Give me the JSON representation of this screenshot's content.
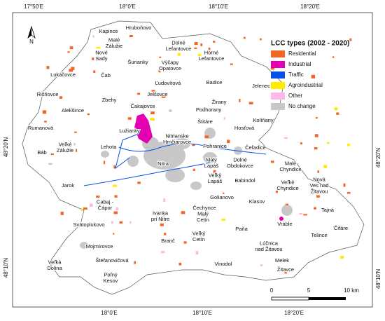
{
  "graticule": {
    "top": [
      "17°50'E",
      "18°0'E",
      "18°10'E",
      "18°20'E"
    ],
    "bottom": [
      "18°0'E",
      "18°10'E",
      "18°20'E"
    ],
    "left": [
      "48°20'N",
      "48°10'N"
    ],
    "right": [
      "48°20'N",
      "48°10'N"
    ]
  },
  "north": "N",
  "legend": {
    "title": "LCC types (2002 - 2020)",
    "items": [
      {
        "label": "Residential",
        "color": "#f26422"
      },
      {
        "label": "Industrial",
        "color": "#e400b0"
      },
      {
        "label": "Traffic",
        "color": "#0a4fe8"
      },
      {
        "label": "Agroindustrial",
        "color": "#ffea00"
      },
      {
        "label": "Other",
        "color": "#ffb8e8"
      },
      {
        "label": "No change",
        "color": "#c8c8c8"
      }
    ]
  },
  "scale": {
    "labels": [
      "0",
      "5",
      "10 km"
    ]
  },
  "places": [
    {
      "lines": [
        "Kapince"
      ]
    },
    {
      "lines": [
        "Hruboňovo"
      ]
    },
    {
      "lines": [
        "Malé",
        "Zálužie"
      ]
    },
    {
      "lines": [
        "Nové",
        "Sady"
      ]
    },
    {
      "lines": [
        "Dolné",
        "Lefantovce"
      ]
    },
    {
      "lines": [
        "Horné",
        "Lefantovce"
      ]
    },
    {
      "lines": [
        "Šurianky"
      ]
    },
    {
      "lines": [
        "Výčapy",
        "Opatovce"
      ]
    },
    {
      "lines": [
        "Čab"
      ]
    },
    {
      "lines": [
        "Lukáčovce"
      ]
    },
    {
      "lines": [
        "Ľudovítová"
      ]
    },
    {
      "lines": [
        "Badice"
      ]
    },
    {
      "lines": [
        "Jelenec"
      ]
    },
    {
      "lines": [
        "Jelšovce"
      ]
    },
    {
      "lines": [
        "Rišňovce"
      ]
    },
    {
      "lines": [
        "Zbehy"
      ]
    },
    {
      "lines": [
        "Čakajovce"
      ]
    },
    {
      "lines": [
        "Žirany"
      ]
    },
    {
      "lines": [
        "Alekšince"
      ]
    },
    {
      "lines": [
        "Podhorany"
      ]
    },
    {
      "lines": [
        "Štitáre"
      ]
    },
    {
      "lines": [
        "Rumanová"
      ]
    },
    {
      "lines": [
        "Lužianky"
      ]
    },
    {
      "lines": [
        "Kolíňany"
      ]
    },
    {
      "lines": [
        "Hosťová"
      ]
    },
    {
      "lines": [
        "Veľké",
        "Zálužie"
      ]
    },
    {
      "lines": [
        "Lehota"
      ]
    },
    {
      "lines": [
        "Nitrianske",
        "Hrnčiarovce"
      ]
    },
    {
      "lines": [
        "Pohranice"
      ]
    },
    {
      "lines": [
        "Čeľadice"
      ]
    },
    {
      "lines": [
        "Báb"
      ]
    },
    {
      "lines": [
        "Nitra"
      ]
    },
    {
      "lines": [
        "Malý",
        "Lapáš"
      ]
    },
    {
      "lines": [
        "Dolné",
        "Obdokovce"
      ]
    },
    {
      "lines": [
        "Malé",
        "Chyndice"
      ]
    },
    {
      "lines": [
        "Jarok"
      ]
    },
    {
      "lines": [
        "Veľký",
        "Lapáš"
      ]
    },
    {
      "lines": [
        "Babindol"
      ]
    },
    {
      "lines": [
        "Veľké",
        "Chyndice"
      ]
    },
    {
      "lines": [
        "Nová",
        "Ves nad",
        "Žitavou"
      ]
    },
    {
      "lines": [
        "Golianovo"
      ]
    },
    {
      "lines": [
        "Klasov"
      ]
    },
    {
      "lines": [
        "Cabaj -",
        "Čápor"
      ]
    },
    {
      "lines": [
        "Čechynce"
      ]
    },
    {
      "lines": [
        "Tajná"
      ]
    },
    {
      "lines": [
        "Čifáre"
      ]
    },
    {
      "lines": [
        "Svätoplukovo"
      ]
    },
    {
      "lines": [
        "Ivanka",
        "pri Nitre"
      ]
    },
    {
      "lines": [
        "Malý",
        "Cetín"
      ]
    },
    {
      "lines": [
        "Vráble"
      ]
    },
    {
      "lines": [
        "Telince"
      ]
    },
    {
      "lines": [
        "Paňa"
      ]
    },
    {
      "lines": [
        "Mojmírovce"
      ]
    },
    {
      "lines": [
        "Branč"
      ]
    },
    {
      "lines": [
        "Veľký",
        "Cetín"
      ]
    },
    {
      "lines": [
        "Lúčnica",
        "nad Žitavou"
      ]
    },
    {
      "lines": [
        "Veľká",
        "Dolina"
      ]
    },
    {
      "lines": [
        "Štefanovičová"
      ]
    },
    {
      "lines": [
        "Vinodol"
      ]
    },
    {
      "lines": [
        "Melek"
      ]
    },
    {
      "lines": [
        "Žitavce"
      ]
    },
    {
      "lines": [
        "Poľný",
        "Kesov"
      ]
    }
  ]
}
